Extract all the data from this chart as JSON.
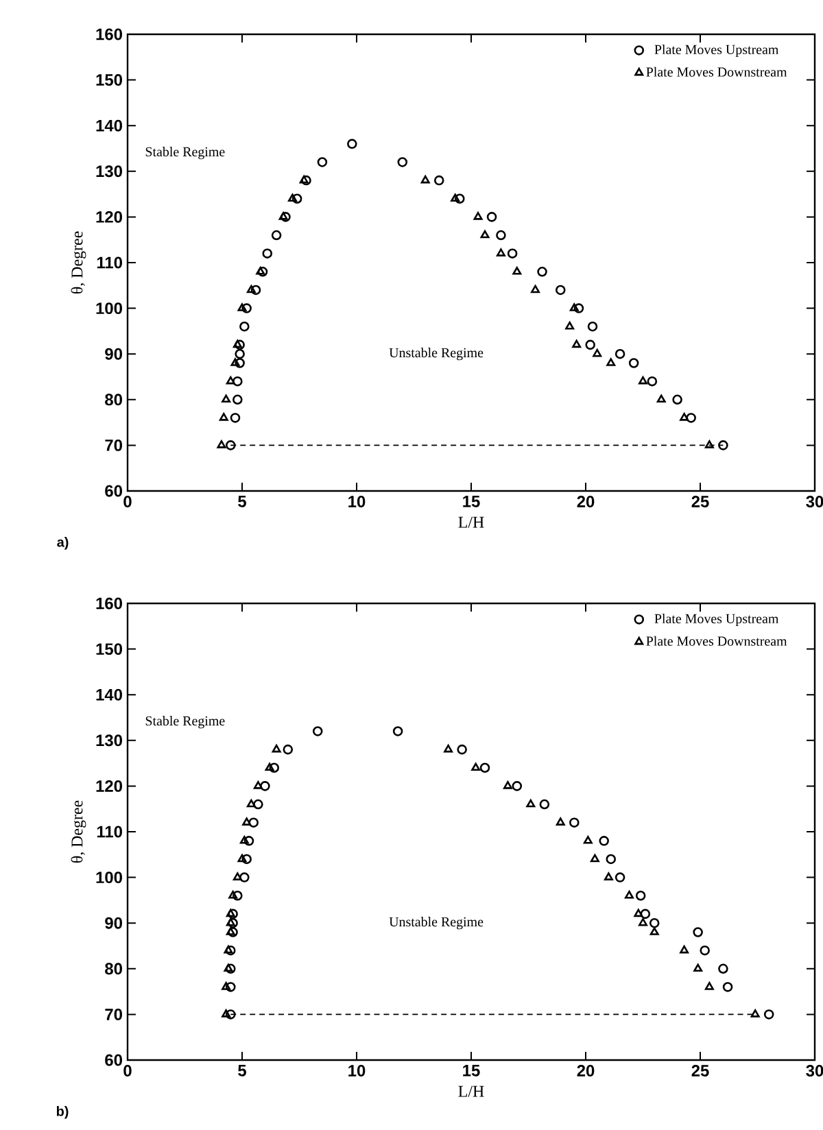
{
  "chart_data": [
    {
      "type": "scatter",
      "xlabel": "L/H",
      "ylabel": "θ, Degree",
      "xlim": [
        0,
        30
      ],
      "ylim": [
        60,
        160
      ],
      "xticks": [
        0,
        5,
        10,
        15,
        20,
        25,
        30
      ],
      "yticks": [
        60,
        70,
        80,
        90,
        100,
        110,
        120,
        130,
        140,
        150,
        160
      ],
      "legend": "top right",
      "grid": false,
      "annotations": [
        "Stable Regime",
        "Unstable Regime",
        "a)"
      ],
      "series": [
        {
          "name": "Plate Moves Upstream",
          "color": "#000000",
          "marker": "circle",
          "x": [
            4.5,
            4.7,
            4.8,
            4.8,
            4.9,
            4.9,
            4.9,
            5.1,
            5.2,
            5.6,
            5.9,
            6.1,
            6.5,
            6.9,
            7.4,
            7.8,
            8.5,
            9.8,
            12.0,
            13.6,
            14.5,
            15.9,
            16.3,
            16.8,
            18.1,
            18.9,
            19.7,
            20.3,
            20.2,
            21.5,
            22.1,
            22.9,
            24.0,
            24.6,
            26.0
          ],
          "values": [
            70,
            76,
            80,
            84,
            88,
            90,
            92,
            96,
            100,
            104,
            108,
            112,
            116,
            120,
            124,
            128,
            132,
            136,
            132,
            128,
            124,
            120,
            116,
            112,
            108,
            104,
            100,
            96,
            92,
            90,
            88,
            84,
            80,
            76,
            70
          ]
        },
        {
          "name": "Plate Moves Downstream",
          "color": "#000000",
          "marker": "triangle",
          "x": [
            4.1,
            4.2,
            4.3,
            4.5,
            4.7,
            4.8,
            5.0,
            5.4,
            5.8,
            6.8,
            7.2,
            7.7,
            13.0,
            14.3,
            15.3,
            15.6,
            16.3,
            17.0,
            17.8,
            19.5,
            19.3,
            19.6,
            20.5,
            21.1,
            22.5,
            23.3,
            24.3,
            25.4
          ],
          "values": [
            70,
            76,
            80,
            84,
            88,
            92,
            100,
            104,
            108,
            120,
            124,
            128,
            128,
            124,
            120,
            116,
            112,
            108,
            104,
            100,
            96,
            92,
            90,
            88,
            84,
            80,
            76,
            70
          ]
        },
        {
          "type": "line",
          "color": "#000000",
          "marker": "none",
          "line_style": "dashed",
          "x": [
            4.5,
            26.0
          ],
          "values": [
            70,
            70
          ]
        }
      ]
    },
    {
      "type": "scatter",
      "xlabel": "L/H",
      "ylabel": "θ, Degree",
      "xlim": [
        0,
        30
      ],
      "ylim": [
        60,
        160
      ],
      "xticks": [
        0,
        5,
        10,
        15,
        20,
        25,
        30
      ],
      "yticks": [
        60,
        70,
        80,
        90,
        100,
        110,
        120,
        130,
        140,
        150,
        160
      ],
      "legend": "top right",
      "grid": false,
      "annotations": [
        "Stable Regime",
        "Unstable Regime",
        "b)"
      ],
      "series": [
        {
          "name": "Plate Moves Upstream",
          "color": "#000000",
          "marker": "circle",
          "x": [
            4.5,
            4.5,
            4.5,
            4.5,
            4.6,
            4.6,
            4.6,
            4.8,
            5.1,
            5.2,
            5.3,
            5.5,
            5.7,
            6.0,
            6.4,
            7.0,
            8.3,
            11.8,
            14.6,
            15.6,
            17.0,
            18.2,
            19.5,
            20.8,
            21.1,
            21.5,
            22.4,
            22.6,
            23.0,
            24.9,
            25.2,
            26.0,
            26.2,
            28.0
          ],
          "values": [
            70,
            76,
            80,
            84,
            88,
            90,
            92,
            96,
            100,
            104,
            108,
            112,
            116,
            120,
            124,
            128,
            132,
            132,
            128,
            124,
            120,
            116,
            112,
            108,
            104,
            100,
            96,
            92,
            90,
            88,
            84,
            80,
            76,
            70
          ]
        },
        {
          "name": "Plate Moves Downstream",
          "color": "#000000",
          "marker": "triangle",
          "x": [
            4.3,
            4.3,
            4.4,
            4.4,
            4.5,
            4.5,
            4.5,
            4.6,
            4.8,
            5.0,
            5.1,
            5.2,
            5.4,
            5.7,
            6.2,
            6.5,
            14.0,
            15.2,
            16.6,
            17.6,
            18.9,
            20.1,
            20.4,
            21.0,
            21.9,
            22.3,
            22.5,
            23.0,
            24.3,
            24.9,
            25.4,
            27.4
          ],
          "values": [
            70,
            76,
            80,
            84,
            88,
            90,
            92,
            96,
            100,
            104,
            108,
            112,
            116,
            120,
            124,
            128,
            128,
            124,
            120,
            116,
            112,
            108,
            104,
            100,
            96,
            92,
            90,
            88,
            84,
            80,
            76,
            70
          ]
        },
        {
          "type": "line",
          "color": "#000000",
          "marker": "none",
          "line_style": "dashed",
          "x": [
            4.5,
            27.4
          ],
          "values": [
            70,
            70
          ]
        }
      ]
    }
  ]
}
